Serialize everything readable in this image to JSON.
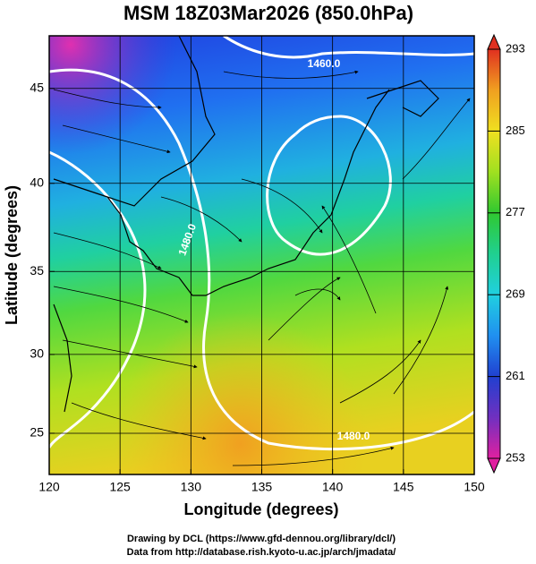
{
  "chart_data": {
    "type": "map",
    "title": "MSM 18Z03Mar2026 (850.0hPa)",
    "xlabel": "Longitude (degrees)",
    "ylabel": "Latitude  (degrees)",
    "xlim": [
      120,
      150
    ],
    "xticks": [
      120,
      125,
      130,
      135,
      140,
      145,
      150
    ],
    "ylim": [
      22.3,
      47.6
    ],
    "yticks": [
      25,
      30,
      35,
      40,
      45
    ],
    "projection": "mercator",
    "grid": true,
    "annotations": [
      "1460.0",
      "1480.0"
    ],
    "colorbar": {
      "lim": [
        253,
        293
      ],
      "ticks": [
        253,
        261,
        269,
        277,
        285,
        293
      ],
      "colors": [
        "#e020a0",
        "#7030c0",
        "#2040d0",
        "#2090f0",
        "#20d0e0",
        "#20d090",
        "#30c830",
        "#a0e020",
        "#f0e020",
        "#f0a020",
        "#e03020"
      ]
    },
    "credits": [
      "Drawing by DCL (https://www.gfd-dennou.org/library/dcl/)",
      "Data from http://database.rish.kyoto-u.ac.jp/arch/jmadata/"
    ]
  }
}
